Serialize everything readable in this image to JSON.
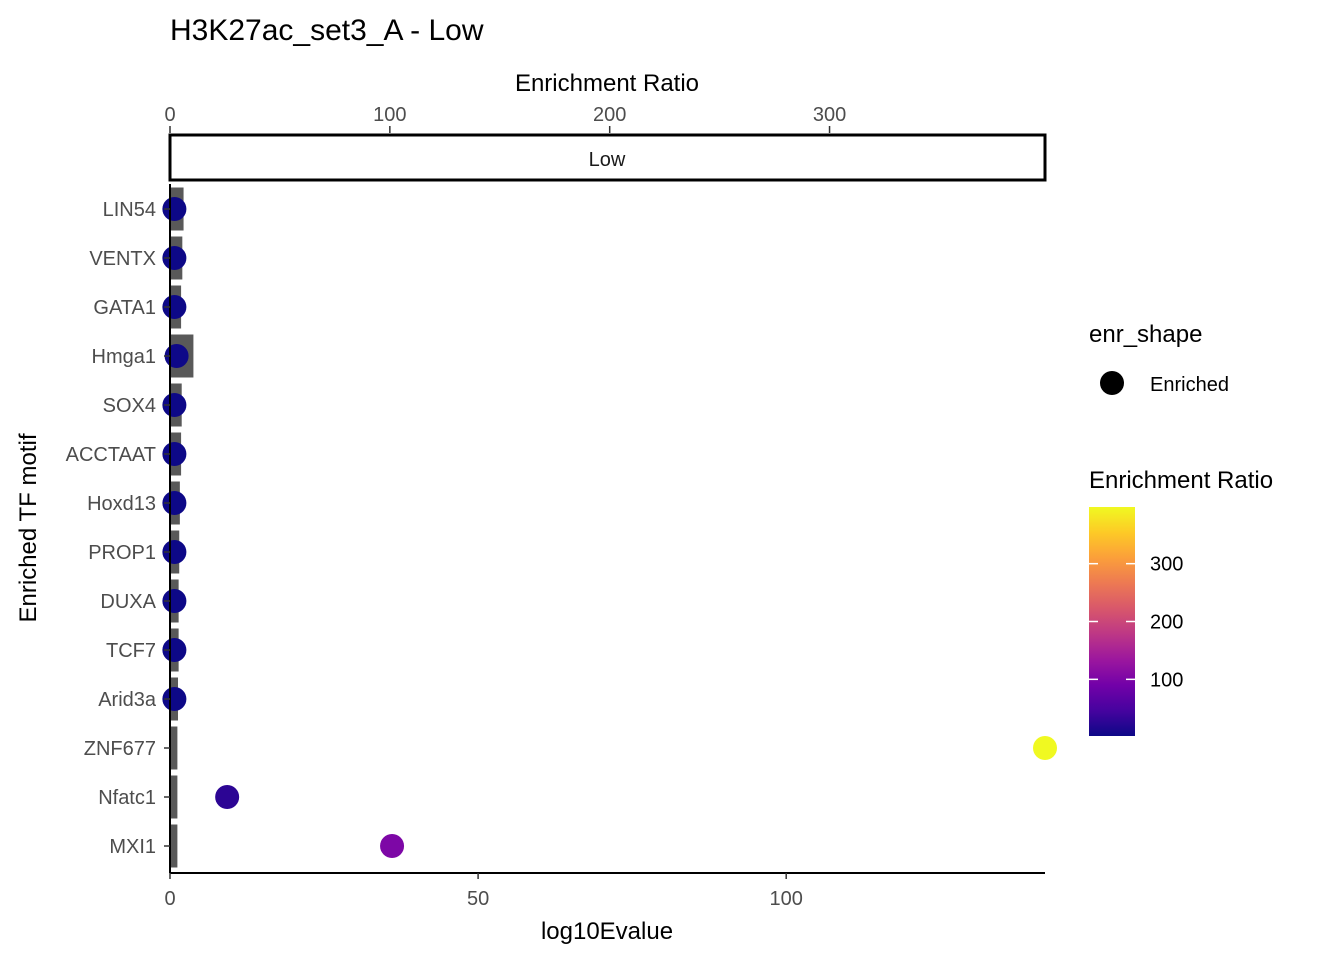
{
  "chart_data": {
    "type": "bar",
    "title": "H3K27ac_set3_A - Low",
    "facet_label": "Low",
    "xlabel": "log10Evalue",
    "ylabel": "Enriched TF motif",
    "top_axis_label": "Enrichment Ratio",
    "xlim": [
      0,
      142
    ],
    "x_ticks": [
      0,
      50,
      100
    ],
    "top_axis_range": [
      0,
      398
    ],
    "top_axis_ticks": [
      0,
      100,
      200,
      300
    ],
    "categories": [
      "LIN54",
      "VENTX",
      "GATA1",
      "Hmga1",
      "SOX4",
      "ACCTAAT",
      "Hoxd13",
      "PROP1",
      "DUXA",
      "TCF7",
      "Arid3a",
      "ZNF677",
      "Nfatc1",
      "MXI1"
    ],
    "series": [
      {
        "name": "log10Evalue",
        "mark": "bar",
        "values": [
          2.2,
          2.0,
          1.8,
          3.8,
          1.9,
          1.8,
          1.6,
          1.5,
          1.4,
          1.4,
          1.3,
          1.2,
          1.2,
          1.2
        ]
      },
      {
        "name": "Enrichment Ratio",
        "mark": "point",
        "values": [
          2,
          2,
          2,
          3,
          2,
          2,
          2,
          2,
          2,
          2,
          2,
          398,
          26,
          101
        ]
      }
    ],
    "legend": {
      "shape_title": "enr_shape",
      "shape_entries": [
        "Enriched"
      ],
      "color_title": "Enrichment Ratio",
      "color_ticks": [
        100,
        200,
        300
      ],
      "color_range": [
        2,
        398
      ],
      "placement": "right"
    },
    "colors": {
      "bar": "#595959",
      "scale": [
        "#0d0887",
        "#46039f",
        "#7201a8",
        "#9c179e",
        "#bd3786",
        "#d8576b",
        "#ed7953",
        "#fb9f3a",
        "#fdca26",
        "#f0f921"
      ]
    }
  }
}
